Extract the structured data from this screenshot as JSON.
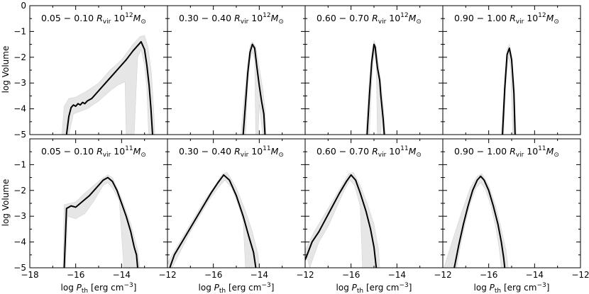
{
  "figure": {
    "ylabel": "log Volume",
    "xlabel_main": "log P",
    "xlabel_sub": "th",
    "xlabel_unit": " [erg cm",
    "xlabel_exp": "−3",
    "xlabel_close": "]",
    "x_ticks": [
      "−18",
      "−16",
      "−14",
      "−12",
      "−16",
      "−14",
      "−12",
      "−16",
      "−14",
      "−12",
      "−16",
      "−14",
      "−12"
    ],
    "y_ticks": [
      "0",
      "−1",
      "−2",
      "−3",
      "−4",
      "−5"
    ],
    "y_ticks_bottom": [
      "−1",
      "−2",
      "−3",
      "−4",
      "−5"
    ]
  },
  "colors": {
    "line": "#000000",
    "band": "#e6e6e6",
    "band_stroke": "#d4d4d4"
  },
  "chart_data": [
    {
      "type": "area",
      "label_range": "0.05 − 0.10",
      "label_mass": "12",
      "row": 0,
      "col": 0,
      "xlim": [
        -18,
        -12
      ],
      "ylim": [
        -5,
        0
      ],
      "xlabel": "",
      "ylabel": "log Volume",
      "line": [
        [
          -16.4,
          -5.0
        ],
        [
          -16.3,
          -4.3
        ],
        [
          -16.2,
          -3.95
        ],
        [
          -16.1,
          -3.85
        ],
        [
          -16.0,
          -3.9
        ],
        [
          -15.9,
          -3.8
        ],
        [
          -15.8,
          -3.85
        ],
        [
          -15.7,
          -3.75
        ],
        [
          -15.6,
          -3.8
        ],
        [
          -15.5,
          -3.7
        ],
        [
          -15.3,
          -3.6
        ],
        [
          -15.0,
          -3.3
        ],
        [
          -14.7,
          -3.0
        ],
        [
          -14.4,
          -2.7
        ],
        [
          -14.1,
          -2.4
        ],
        [
          -13.8,
          -2.1
        ],
        [
          -13.5,
          -1.75
        ],
        [
          -13.3,
          -1.55
        ],
        [
          -13.15,
          -1.4
        ],
        [
          -13.0,
          -1.7
        ],
        [
          -12.9,
          -2.3
        ],
        [
          -12.8,
          -3.1
        ],
        [
          -12.72,
          -4.0
        ],
        [
          -12.65,
          -5.0
        ]
      ],
      "band_upper": [
        [
          -16.6,
          -5.0
        ],
        [
          -16.5,
          -3.9
        ],
        [
          -16.3,
          -3.6
        ],
        [
          -16.0,
          -3.55
        ],
        [
          -15.7,
          -3.4
        ],
        [
          -15.5,
          -3.3
        ],
        [
          -15.0,
          -3.0
        ],
        [
          -14.5,
          -2.5
        ],
        [
          -14.0,
          -2.1
        ],
        [
          -13.5,
          -1.5
        ],
        [
          -13.2,
          -1.2
        ],
        [
          -13.0,
          -1.15
        ],
        [
          -12.85,
          -1.6
        ],
        [
          -12.7,
          -2.6
        ],
        [
          -12.6,
          -4.0
        ],
        [
          -12.55,
          -5.0
        ]
      ],
      "band_lower": [
        [
          -16.3,
          -5.0
        ],
        [
          -16.1,
          -4.2
        ],
        [
          -15.8,
          -4.1
        ],
        [
          -15.5,
          -4.0
        ],
        [
          -15.0,
          -3.7
        ],
        [
          -14.5,
          -3.3
        ],
        [
          -14.2,
          -3.1
        ],
        [
          -13.85,
          -2.95
        ],
        [
          -13.8,
          -5.0
        ],
        [
          -13.45,
          -5.0
        ],
        [
          -13.3,
          -2.0
        ],
        [
          -13.15,
          -1.7
        ],
        [
          -13.0,
          -2.3
        ],
        [
          -12.9,
          -3.2
        ],
        [
          -12.82,
          -5.0
        ]
      ]
    },
    {
      "type": "area",
      "label_range": "0.30 − 0.40",
      "label_mass": "12",
      "row": 0,
      "col": 1,
      "xlim": [
        -18,
        -12
      ],
      "ylim": [
        -5,
        0
      ],
      "line": [
        [
          -14.7,
          -5.0
        ],
        [
          -14.6,
          -3.8
        ],
        [
          -14.5,
          -2.6
        ],
        [
          -14.4,
          -1.8
        ],
        [
          -14.3,
          -1.5
        ],
        [
          -14.2,
          -1.65
        ],
        [
          -14.1,
          -2.4
        ],
        [
          -14.0,
          -3.1
        ],
        [
          -13.9,
          -3.7
        ],
        [
          -13.8,
          -4.2
        ],
        [
          -13.75,
          -5.0
        ]
      ],
      "band_upper": [
        [
          -14.8,
          -5.0
        ],
        [
          -14.65,
          -3.5
        ],
        [
          -14.5,
          -2.2
        ],
        [
          -14.4,
          -1.55
        ],
        [
          -14.3,
          -1.4
        ],
        [
          -14.15,
          -1.6
        ],
        [
          -14.0,
          -2.4
        ],
        [
          -13.85,
          -3.2
        ],
        [
          -13.75,
          -4.0
        ],
        [
          -13.7,
          -5.0
        ]
      ],
      "band_lower": [
        [
          -14.6,
          -5.0
        ],
        [
          -14.5,
          -3.0
        ],
        [
          -14.4,
          -2.1
        ],
        [
          -14.3,
          -1.8
        ],
        [
          -14.2,
          -2.1
        ],
        [
          -14.15,
          -5.0
        ],
        [
          -14.05,
          -5.0
        ],
        [
          -14.0,
          -3.8
        ],
        [
          -13.85,
          -5.0
        ]
      ]
    },
    {
      "type": "area",
      "label_range": "0.60 − 0.70",
      "label_mass": "12",
      "row": 0,
      "col": 2,
      "xlim": [
        -18,
        -12
      ],
      "ylim": [
        -5,
        0
      ],
      "line": [
        [
          -15.3,
          -5.0
        ],
        [
          -15.2,
          -3.5
        ],
        [
          -15.1,
          -2.2
        ],
        [
          -15.0,
          -1.5
        ],
        [
          -14.95,
          -1.6
        ],
        [
          -14.85,
          -2.4
        ],
        [
          -14.75,
          -2.9
        ],
        [
          -14.7,
          -3.5
        ],
        [
          -14.6,
          -4.4
        ],
        [
          -14.55,
          -5.0
        ]
      ],
      "band_upper": [
        [
          -15.35,
          -5.0
        ],
        [
          -15.25,
          -3.4
        ],
        [
          -15.1,
          -1.9
        ],
        [
          -15.0,
          -1.35
        ],
        [
          -14.9,
          -1.6
        ],
        [
          -14.75,
          -2.6
        ],
        [
          -14.6,
          -3.8
        ],
        [
          -14.5,
          -5.0
        ]
      ],
      "band_lower": [
        [
          -15.2,
          -5.0
        ],
        [
          -15.1,
          -3.0
        ],
        [
          -15.0,
          -1.8
        ],
        [
          -14.9,
          -2.3
        ],
        [
          -14.85,
          -5.0
        ],
        [
          -14.7,
          -5.0
        ],
        [
          -14.65,
          -4.0
        ],
        [
          -14.6,
          -5.0
        ]
      ]
    },
    {
      "type": "area",
      "label_range": "0.90 − 1.00",
      "label_mass": "12",
      "row": 0,
      "col": 3,
      "xlim": [
        -18,
        -12
      ],
      "ylim": [
        -5,
        0
      ],
      "line": [
        [
          -15.4,
          -5.0
        ],
        [
          -15.3,
          -3.2
        ],
        [
          -15.2,
          -1.9
        ],
        [
          -15.1,
          -1.65
        ],
        [
          -15.0,
          -2.1
        ],
        [
          -14.9,
          -3.4
        ],
        [
          -14.85,
          -5.0
        ]
      ],
      "band_upper": [
        [
          -15.45,
          -5.0
        ],
        [
          -15.3,
          -2.8
        ],
        [
          -15.2,
          -1.7
        ],
        [
          -15.1,
          -1.5
        ],
        [
          -15.0,
          -1.9
        ],
        [
          -14.9,
          -3.0
        ],
        [
          -14.8,
          -5.0
        ]
      ],
      "band_lower": [
        [
          -15.35,
          -5.0
        ],
        [
          -15.25,
          -3.0
        ],
        [
          -15.15,
          -2.0
        ],
        [
          -15.05,
          -2.3
        ],
        [
          -14.95,
          -5.0
        ]
      ]
    },
    {
      "type": "area",
      "label_range": "0.05 − 0.10",
      "label_mass": "11",
      "row": 1,
      "col": 0,
      "xlim": [
        -18,
        -12
      ],
      "ylim": [
        -5,
        0
      ],
      "ylabel": "log Volume",
      "line": [
        [
          -16.5,
          -5.0
        ],
        [
          -16.4,
          -2.7
        ],
        [
          -16.2,
          -2.6
        ],
        [
          -16.0,
          -2.65
        ],
        [
          -15.8,
          -2.5
        ],
        [
          -15.6,
          -2.35
        ],
        [
          -15.4,
          -2.2
        ],
        [
          -15.2,
          -2.0
        ],
        [
          -15.0,
          -1.8
        ],
        [
          -14.8,
          -1.6
        ],
        [
          -14.6,
          -1.5
        ],
        [
          -14.4,
          -1.65
        ],
        [
          -14.2,
          -2.0
        ],
        [
          -14.0,
          -2.5
        ],
        [
          -13.8,
          -3.0
        ],
        [
          -13.6,
          -3.6
        ],
        [
          -13.45,
          -4.2
        ],
        [
          -13.35,
          -4.5
        ],
        [
          -13.3,
          -5.0
        ]
      ],
      "band_upper": [
        [
          -16.55,
          -5.0
        ],
        [
          -16.5,
          -2.55
        ],
        [
          -16.0,
          -2.45
        ],
        [
          -15.6,
          -2.1
        ],
        [
          -15.2,
          -1.8
        ],
        [
          -14.8,
          -1.5
        ],
        [
          -14.6,
          -1.4
        ],
        [
          -14.4,
          -1.5
        ],
        [
          -14.0,
          -2.3
        ],
        [
          -13.6,
          -3.3
        ],
        [
          -13.3,
          -4.3
        ],
        [
          -13.2,
          -5.0
        ]
      ],
      "band_lower": [
        [
          -16.45,
          -5.0
        ],
        [
          -16.35,
          -3.0
        ],
        [
          -16.0,
          -3.1
        ],
        [
          -15.6,
          -2.9
        ],
        [
          -15.2,
          -2.4
        ],
        [
          -14.8,
          -1.8
        ],
        [
          -14.6,
          -1.7
        ],
        [
          -14.4,
          -1.9
        ],
        [
          -14.1,
          -2.4
        ],
        [
          -13.9,
          -5.0
        ]
      ]
    },
    {
      "type": "area",
      "label_range": "0.30 − 0.40",
      "label_mass": "11",
      "row": 1,
      "col": 1,
      "xlim": [
        -18,
        -12
      ],
      "ylim": [
        -5,
        0
      ],
      "line": [
        [
          -17.9,
          -5.0
        ],
        [
          -17.7,
          -4.5
        ],
        [
          -17.3,
          -3.9
        ],
        [
          -16.9,
          -3.3
        ],
        [
          -16.5,
          -2.7
        ],
        [
          -16.1,
          -2.1
        ],
        [
          -15.8,
          -1.7
        ],
        [
          -15.55,
          -1.4
        ],
        [
          -15.3,
          -1.6
        ],
        [
          -15.0,
          -2.2
        ],
        [
          -14.7,
          -3.0
        ],
        [
          -14.45,
          -3.8
        ],
        [
          -14.25,
          -4.4
        ],
        [
          -14.15,
          -5.0
        ]
      ],
      "band_upper": [
        [
          -18.0,
          -4.8
        ],
        [
          -17.6,
          -4.2
        ],
        [
          -17.2,
          -3.6
        ],
        [
          -16.8,
          -3.0
        ],
        [
          -16.4,
          -2.4
        ],
        [
          -16.0,
          -1.9
        ],
        [
          -15.6,
          -1.35
        ],
        [
          -15.4,
          -1.3
        ],
        [
          -15.0,
          -1.9
        ],
        [
          -14.6,
          -2.8
        ],
        [
          -14.3,
          -3.6
        ],
        [
          -14.05,
          -4.5
        ],
        [
          -14.0,
          -5.0
        ]
      ],
      "band_lower": [
        [
          -17.8,
          -5.0
        ],
        [
          -17.4,
          -4.3
        ],
        [
          -17.0,
          -3.6
        ],
        [
          -16.6,
          -3.0
        ],
        [
          -16.2,
          -2.4
        ],
        [
          -15.8,
          -1.9
        ],
        [
          -15.5,
          -1.6
        ],
        [
          -15.2,
          -1.9
        ],
        [
          -14.9,
          -2.6
        ],
        [
          -14.7,
          -3.2
        ],
        [
          -14.6,
          -5.0
        ]
      ]
    },
    {
      "type": "area",
      "label_range": "0.60 − 0.70",
      "label_mass": "11",
      "row": 1,
      "col": 2,
      "xlim": [
        -18,
        -12
      ],
      "ylim": [
        -5,
        0
      ],
      "line": [
        [
          -18.0,
          -4.7
        ],
        [
          -17.7,
          -4.0
        ],
        [
          -17.4,
          -3.6
        ],
        [
          -17.1,
          -3.1
        ],
        [
          -16.8,
          -2.6
        ],
        [
          -16.5,
          -2.1
        ],
        [
          -16.2,
          -1.65
        ],
        [
          -16.0,
          -1.4
        ],
        [
          -15.8,
          -1.6
        ],
        [
          -15.6,
          -2.1
        ],
        [
          -15.35,
          -2.8
        ],
        [
          -15.15,
          -3.5
        ],
        [
          -15.0,
          -4.2
        ],
        [
          -14.9,
          -5.0
        ]
      ],
      "band_upper": [
        [
          -18.0,
          -4.3
        ],
        [
          -17.6,
          -3.6
        ],
        [
          -17.2,
          -3.0
        ],
        [
          -16.8,
          -2.4
        ],
        [
          -16.4,
          -1.8
        ],
        [
          -16.1,
          -1.35
        ],
        [
          -15.9,
          -1.3
        ],
        [
          -15.6,
          -1.8
        ],
        [
          -15.3,
          -2.5
        ],
        [
          -15.0,
          -3.3
        ],
        [
          -14.8,
          -4.3
        ],
        [
          -14.75,
          -5.0
        ]
      ],
      "band_lower": [
        [
          -17.8,
          -5.0
        ],
        [
          -17.4,
          -4.0
        ],
        [
          -17.0,
          -3.4
        ],
        [
          -16.6,
          -2.6
        ],
        [
          -16.3,
          -2.0
        ],
        [
          -16.05,
          -1.6
        ],
        [
          -15.85,
          -1.8
        ],
        [
          -15.6,
          -2.6
        ],
        [
          -15.5,
          -5.0
        ]
      ]
    },
    {
      "type": "area",
      "label_range": "0.90 − 1.00",
      "label_mass": "11",
      "row": 1,
      "col": 3,
      "xlim": [
        -18,
        -12
      ],
      "ylim": [
        -5,
        0
      ],
      "line": [
        [
          -17.5,
          -5.0
        ],
        [
          -17.3,
          -4.1
        ],
        [
          -17.1,
          -3.3
        ],
        [
          -16.9,
          -2.6
        ],
        [
          -16.7,
          -2.0
        ],
        [
          -16.5,
          -1.6
        ],
        [
          -16.35,
          -1.45
        ],
        [
          -16.2,
          -1.6
        ],
        [
          -16.0,
          -2.0
        ],
        [
          -15.8,
          -2.6
        ],
        [
          -15.6,
          -3.3
        ],
        [
          -15.45,
          -4.0
        ],
        [
          -15.35,
          -4.6
        ],
        [
          -15.3,
          -5.0
        ]
      ],
      "band_upper": [
        [
          -17.95,
          -5.0
        ],
        [
          -17.6,
          -4.0
        ],
        [
          -17.2,
          -2.9
        ],
        [
          -16.8,
          -1.9
        ],
        [
          -16.5,
          -1.45
        ],
        [
          -16.3,
          -1.35
        ],
        [
          -16.0,
          -1.8
        ],
        [
          -15.7,
          -2.6
        ],
        [
          -15.45,
          -3.5
        ],
        [
          -15.25,
          -4.3
        ],
        [
          -15.15,
          -5.0
        ]
      ],
      "band_lower": [
        [
          -17.4,
          -5.0
        ],
        [
          -17.2,
          -4.0
        ],
        [
          -17.0,
          -3.2
        ],
        [
          -16.8,
          -2.5
        ],
        [
          -16.55,
          -1.9
        ],
        [
          -16.35,
          -1.7
        ],
        [
          -16.15,
          -1.95
        ],
        [
          -15.9,
          -2.6
        ],
        [
          -15.7,
          -3.4
        ],
        [
          -15.55,
          -4.2
        ],
        [
          -15.45,
          -5.0
        ]
      ]
    }
  ]
}
